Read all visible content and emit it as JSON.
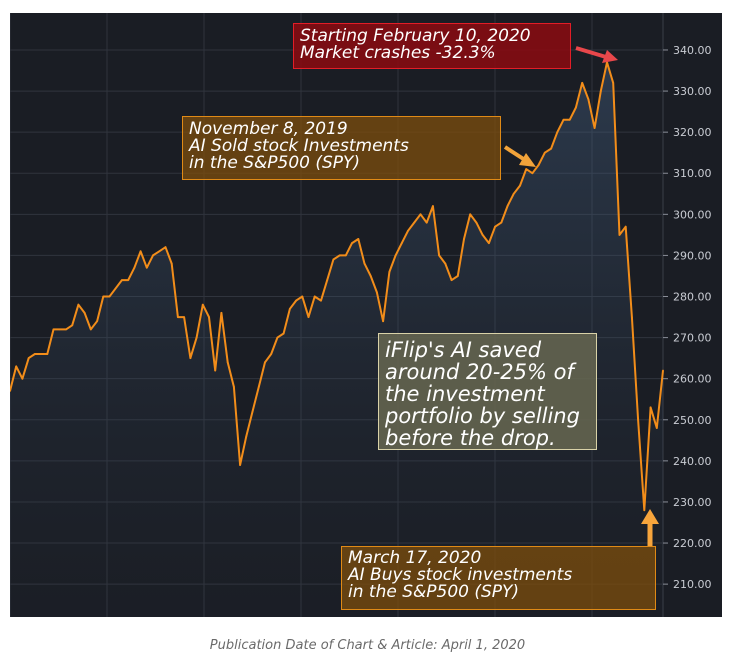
{
  "chart_data": {
    "type": "area",
    "ylim": [
      202,
      349
    ],
    "y_ticks": [
      "340.00",
      "330.00",
      "320.00",
      "310.00",
      "300.00",
      "290.00",
      "280.00",
      "270.00",
      "260.00",
      "250.00",
      "240.00",
      "230.00",
      "220.00",
      "210.00"
    ],
    "values": [
      257,
      263,
      260,
      265,
      266,
      266,
      266,
      272,
      272,
      272,
      273,
      278,
      276,
      272,
      274,
      280,
      280,
      282,
      284,
      284,
      287,
      291,
      287,
      290,
      291,
      292,
      288,
      275,
      275,
      265,
      270,
      278,
      275,
      262,
      276,
      264,
      258,
      239,
      246,
      252,
      258,
      264,
      266,
      270,
      271,
      277,
      279,
      280,
      275,
      280,
      279,
      284,
      289,
      290,
      290,
      293,
      294,
      288,
      285,
      281,
      274,
      286,
      290,
      293,
      296,
      298,
      300,
      298,
      302,
      290,
      288,
      284,
      285,
      294,
      300,
      298,
      295,
      293,
      297,
      298,
      302,
      305,
      307,
      311,
      310,
      312,
      315,
      316,
      320,
      323,
      323,
      326,
      332,
      328,
      321,
      330,
      337,
      332,
      295,
      297,
      275,
      250,
      228,
      253,
      248,
      262
    ],
    "line_color": "#f28d1a",
    "grid": true
  },
  "annotations": {
    "crash": "Starting February 10, 2020\nMarket crashes -32.3%",
    "sold": "November 8, 2019\nAI Sold stock Investments\nin the S&P500 (SPY)",
    "saved": "iFlip's AI saved\naround 20-25% of\nthe investment\nportfolio by selling\nbefore the drop.",
    "buy": "March 17, 2020\nAI Buys stock investments\nin the S&P500 (SPY)"
  },
  "colors": {
    "background": "#1a1d24",
    "grid": "#30343d",
    "crash_box_border": "#e21d27",
    "buy_arrow": "#f7a53c",
    "crash_arrow": "#e8474b"
  },
  "caption": "Publication Date of Chart & Article: April 1, 2020"
}
